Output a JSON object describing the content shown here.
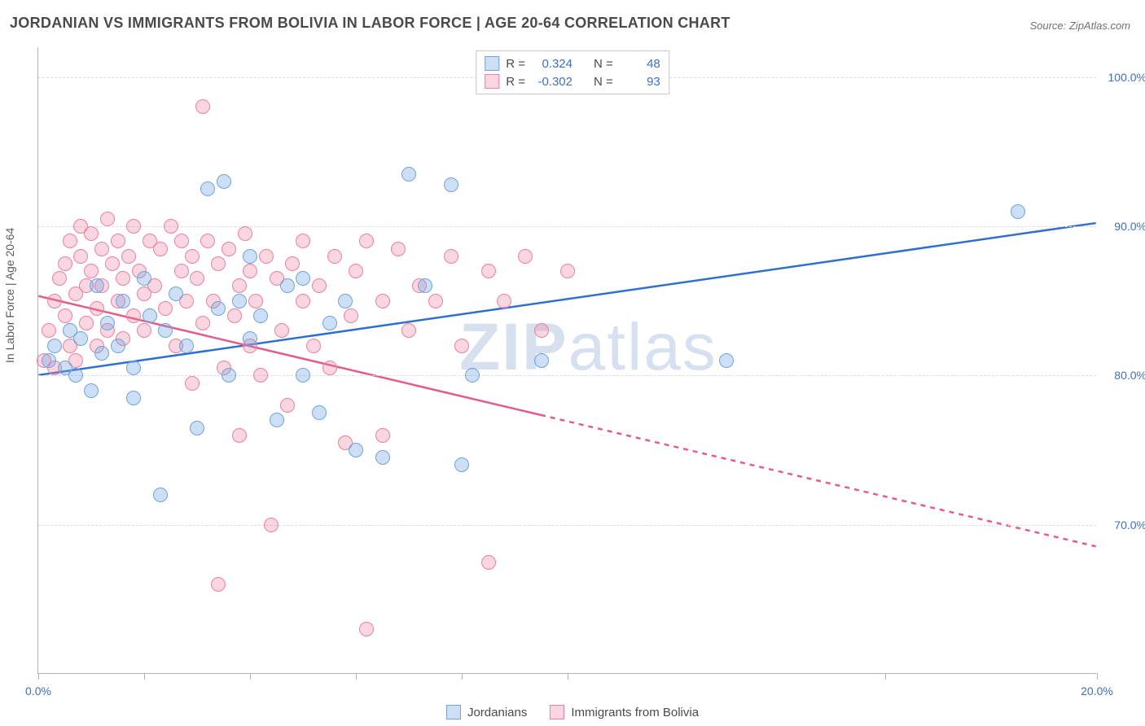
{
  "title": "JORDANIAN VS IMMIGRANTS FROM BOLIVIA IN LABOR FORCE | AGE 20-64 CORRELATION CHART",
  "source": "Source: ZipAtlas.com",
  "yaxis_label": "In Labor Force | Age 20-64",
  "watermark_bold": "ZIP",
  "watermark_rest": "atlas",
  "chart": {
    "type": "scatter-with-trendlines",
    "background_color": "#ffffff",
    "grid_color": "#dcdcdc",
    "axis_color": "#b0b0b0",
    "tick_label_color": "#3e6fc1",
    "axis_label_color": "#5a5a5a",
    "xlim": [
      0,
      20
    ],
    "ylim": [
      60,
      102
    ],
    "x_ticks": [
      0,
      2,
      4,
      6,
      8,
      10,
      16,
      20
    ],
    "x_tick_labels": {
      "0": "0.0%",
      "20": "20.0%"
    },
    "y_ticks": [
      70,
      80,
      90,
      100
    ],
    "y_tick_labels": {
      "70": "70.0%",
      "80": "80.0%",
      "90": "90.0%",
      "100": "100.0%"
    },
    "marker_radius": 9,
    "marker_stroke_width": 1.5,
    "trendline_width": 2.5
  },
  "series": {
    "jordanians": {
      "label": "Jordanians",
      "fill": "rgba(111, 163, 224, 0.35)",
      "stroke": "#6fa3e0",
      "line_color": "#2f6fd0",
      "R": "0.324",
      "N": "48",
      "trend": {
        "x1": 0,
        "y1": 80,
        "x2": 20,
        "y2": 90.2,
        "dash_from_x": null
      },
      "points": [
        [
          0.2,
          81
        ],
        [
          0.3,
          82
        ],
        [
          0.5,
          80.5
        ],
        [
          0.6,
          83
        ],
        [
          0.7,
          80
        ],
        [
          0.8,
          82.5
        ],
        [
          1.0,
          79
        ],
        [
          1.1,
          86
        ],
        [
          1.2,
          81.5
        ],
        [
          1.3,
          83.5
        ],
        [
          1.5,
          82
        ],
        [
          1.6,
          85
        ],
        [
          1.8,
          80.5
        ],
        [
          1.8,
          78.5
        ],
        [
          2.0,
          86.5
        ],
        [
          2.1,
          84
        ],
        [
          2.3,
          72
        ],
        [
          2.4,
          83
        ],
        [
          2.6,
          85.5
        ],
        [
          2.8,
          82
        ],
        [
          3.0,
          76.5
        ],
        [
          3.2,
          92.5
        ],
        [
          3.4,
          84.5
        ],
        [
          3.5,
          93
        ],
        [
          3.6,
          80
        ],
        [
          3.8,
          85
        ],
        [
          4.0,
          82.5
        ],
        [
          4.0,
          88
        ],
        [
          4.2,
          84
        ],
        [
          4.5,
          77
        ],
        [
          4.7,
          86
        ],
        [
          5.0,
          80
        ],
        [
          5.0,
          86.5
        ],
        [
          5.3,
          77.5
        ],
        [
          5.5,
          83.5
        ],
        [
          5.8,
          85
        ],
        [
          6.0,
          75
        ],
        [
          6.5,
          74.5
        ],
        [
          7.0,
          93.5
        ],
        [
          7.3,
          86
        ],
        [
          7.8,
          92.8
        ],
        [
          8.0,
          74
        ],
        [
          8.2,
          80
        ],
        [
          9.5,
          81
        ],
        [
          13.0,
          81
        ],
        [
          18.5,
          91
        ]
      ]
    },
    "bolivia": {
      "label": "Immigrants from Bolivia",
      "fill": "rgba(236, 128, 160, 0.32)",
      "stroke": "#ec80a0",
      "line_color": "#e45c86",
      "R": "-0.302",
      "N": "93",
      "trend": {
        "x1": 0,
        "y1": 85.3,
        "x2": 20,
        "y2": 68.5,
        "dash_from_x": 9.5
      },
      "points": [
        [
          0.1,
          81
        ],
        [
          0.2,
          83
        ],
        [
          0.3,
          85
        ],
        [
          0.3,
          80.5
        ],
        [
          0.4,
          86.5
        ],
        [
          0.5,
          84
        ],
        [
          0.5,
          87.5
        ],
        [
          0.6,
          82
        ],
        [
          0.6,
          89
        ],
        [
          0.7,
          85.5
        ],
        [
          0.7,
          81
        ],
        [
          0.8,
          88
        ],
        [
          0.8,
          90
        ],
        [
          0.9,
          83.5
        ],
        [
          0.9,
          86
        ],
        [
          1.0,
          87
        ],
        [
          1.0,
          89.5
        ],
        [
          1.1,
          84.5
        ],
        [
          1.1,
          82
        ],
        [
          1.2,
          88.5
        ],
        [
          1.2,
          86
        ],
        [
          1.3,
          90.5
        ],
        [
          1.3,
          83
        ],
        [
          1.4,
          87.5
        ],
        [
          1.5,
          85
        ],
        [
          1.5,
          89
        ],
        [
          1.6,
          82.5
        ],
        [
          1.6,
          86.5
        ],
        [
          1.7,
          88
        ],
        [
          1.8,
          84
        ],
        [
          1.8,
          90
        ],
        [
          1.9,
          87
        ],
        [
          2.0,
          85.5
        ],
        [
          2.0,
          83
        ],
        [
          2.1,
          89
        ],
        [
          2.2,
          86
        ],
        [
          2.3,
          88.5
        ],
        [
          2.4,
          84.5
        ],
        [
          2.5,
          90
        ],
        [
          2.6,
          82
        ],
        [
          2.7,
          87
        ],
        [
          2.7,
          89
        ],
        [
          2.8,
          85
        ],
        [
          2.9,
          79.5
        ],
        [
          2.9,
          88
        ],
        [
          3.0,
          86.5
        ],
        [
          3.1,
          83.5
        ],
        [
          3.1,
          98
        ],
        [
          3.2,
          89
        ],
        [
          3.3,
          85
        ],
        [
          3.4,
          87.5
        ],
        [
          3.4,
          66
        ],
        [
          3.5,
          80.5
        ],
        [
          3.6,
          88.5
        ],
        [
          3.7,
          84
        ],
        [
          3.8,
          76
        ],
        [
          3.8,
          86
        ],
        [
          3.9,
          89.5
        ],
        [
          4.0,
          82
        ],
        [
          4.0,
          87
        ],
        [
          4.1,
          85
        ],
        [
          4.2,
          80
        ],
        [
          4.3,
          88
        ],
        [
          4.4,
          70
        ],
        [
          4.5,
          86.5
        ],
        [
          4.6,
          83
        ],
        [
          4.7,
          78
        ],
        [
          4.8,
          87.5
        ],
        [
          5.0,
          85
        ],
        [
          5.0,
          89
        ],
        [
          5.2,
          82
        ],
        [
          5.3,
          86
        ],
        [
          5.5,
          80.5
        ],
        [
          5.6,
          88
        ],
        [
          5.8,
          75.5
        ],
        [
          5.9,
          84
        ],
        [
          6.0,
          87
        ],
        [
          6.2,
          89
        ],
        [
          6.2,
          63
        ],
        [
          6.5,
          76
        ],
        [
          6.5,
          85
        ],
        [
          6.8,
          88.5
        ],
        [
          7.0,
          83
        ],
        [
          7.2,
          86
        ],
        [
          7.5,
          85
        ],
        [
          7.8,
          88
        ],
        [
          8.0,
          82
        ],
        [
          8.5,
          87
        ],
        [
          8.5,
          67.5
        ],
        [
          8.8,
          85
        ],
        [
          9.2,
          88
        ],
        [
          9.5,
          83
        ],
        [
          10.0,
          87
        ]
      ]
    }
  },
  "legend_stat_labels": {
    "R": "R =",
    "N": "N ="
  }
}
